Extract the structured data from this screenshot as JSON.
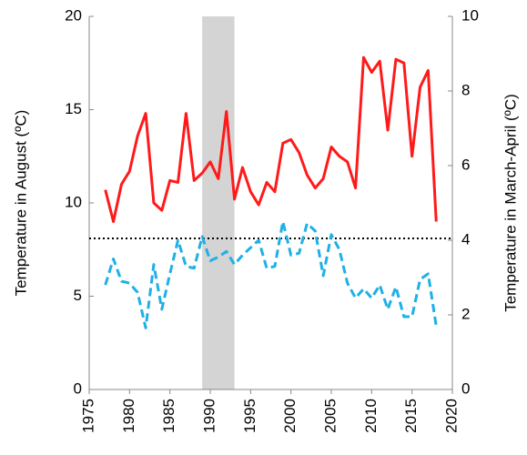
{
  "chart_data": {
    "type": "line",
    "x": [
      1977,
      1978,
      1979,
      1980,
      1981,
      1982,
      1983,
      1984,
      1985,
      1986,
      1987,
      1988,
      1989,
      1990,
      1991,
      1992,
      1993,
      1994,
      1995,
      1996,
      1997,
      1998,
      1999,
      2000,
      2001,
      2002,
      2003,
      2004,
      2005,
      2006,
      2007,
      2008,
      2009,
      2010,
      2011,
      2012,
      2013,
      2014,
      2015,
      2016,
      2017,
      2018
    ],
    "series": [
      {
        "name": "August",
        "color": "#ff1a1a",
        "style": "solid",
        "values": [
          10.7,
          9.0,
          11.0,
          11.7,
          13.6,
          14.8,
          10.0,
          9.6,
          11.2,
          11.1,
          14.8,
          11.2,
          11.6,
          12.2,
          11.3,
          14.9,
          10.2,
          11.9,
          10.6,
          9.9,
          11.1,
          10.6,
          13.2,
          13.4,
          12.7,
          11.5,
          10.8,
          11.3,
          13.0,
          12.5,
          12.2,
          10.8,
          17.8,
          17.0,
          17.6,
          13.9,
          17.7,
          17.5,
          12.5,
          16.2,
          17.1,
          9.0
        ]
      },
      {
        "name": "March-April",
        "color": "#1fb0e6",
        "style": "dashed",
        "axis": "y2",
        "values": [
          2.8,
          3.5,
          2.9,
          2.85,
          2.6,
          1.65,
          3.35,
          2.15,
          3.1,
          4.0,
          3.3,
          3.25,
          4.1,
          3.45,
          3.55,
          3.7,
          3.35,
          3.6,
          3.8,
          4.0,
          3.25,
          3.3,
          4.5,
          3.6,
          3.65,
          4.45,
          4.25,
          3.05,
          4.15,
          3.75,
          2.85,
          2.45,
          2.7,
          2.45,
          2.8,
          2.15,
          2.75,
          1.95,
          1.95,
          2.95,
          3.1,
          1.7
        ]
      }
    ],
    "ylabel": "Temperature in August (ºC)",
    "y2label": "Temperature in March-April (ºC)",
    "xlim": [
      1975,
      2020
    ],
    "xticks": [
      1975,
      1980,
      1985,
      1990,
      1995,
      2000,
      2005,
      2010,
      2015,
      2020
    ],
    "ylim": [
      0,
      20
    ],
    "yticks": [
      0,
      5,
      10,
      15,
      20
    ],
    "y2lim": [
      0,
      10
    ],
    "y2ticks": [
      0,
      2,
      4,
      6,
      8,
      10
    ],
    "reference_line": 8.1,
    "shaded_span": [
      1989,
      1993
    ]
  }
}
